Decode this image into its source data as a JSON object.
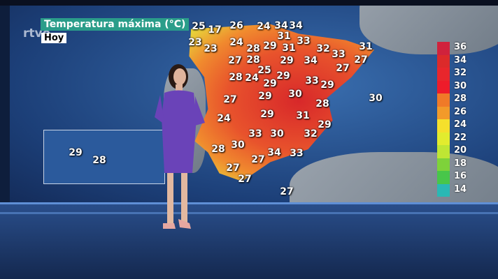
{
  "broadcaster": "rtve",
  "title": "Temperatura máxima (°C)",
  "day": "Hoy",
  "peninsula_values": [
    25,
    17,
    26,
    24,
    34,
    34,
    23,
    23,
    24,
    31,
    33,
    29,
    31,
    28,
    32,
    33,
    31,
    27,
    27,
    28,
    29,
    34,
    27,
    25,
    28,
    24,
    29,
    29,
    33,
    29,
    27,
    29,
    30,
    28,
    30,
    24,
    29,
    31,
    29,
    33,
    30,
    32,
    28,
    30,
    34,
    33,
    27,
    27,
    27,
    27
  ],
  "canary_values": [
    29,
    28
  ],
  "legend": {
    "values": [
      36,
      34,
      32,
      30,
      28,
      26,
      24,
      22,
      20,
      18,
      16,
      14
    ],
    "colors": [
      "#d0223c",
      "#dc2a2a",
      "#e8262c",
      "#ee1c2a",
      "#f07a28",
      "#f29a2a",
      "#f5e02c",
      "#e2ec2e",
      "#bfe634",
      "#7ed23a",
      "#48c64a",
      "#2ab8b4"
    ]
  }
}
